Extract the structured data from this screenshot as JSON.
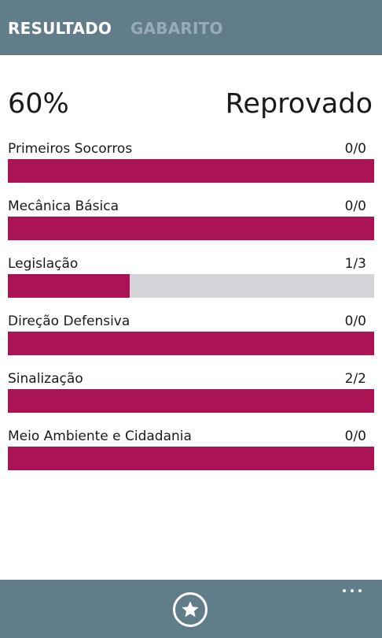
{
  "tabs": {
    "active": "RESULTADO",
    "inactive": "GABARITO"
  },
  "summary": {
    "score": "60%",
    "verdict": "Reprovado"
  },
  "colors": {
    "header": "#617d8a",
    "bar_fill": "#aa1354",
    "bar_track": "#d3d5d8"
  },
  "categories": [
    {
      "name": "Primeiros Socorros",
      "count": "0/0",
      "progress": 1.0
    },
    {
      "name": "Mecânica Básica",
      "count": "0/0",
      "progress": 1.0
    },
    {
      "name": "Legislação",
      "count": "1/3",
      "progress": 0.3333
    },
    {
      "name": "Direção Defensiva",
      "count": "0/0",
      "progress": 1.0
    },
    {
      "name": "Sinalização",
      "count": "2/2",
      "progress": 1.0
    },
    {
      "name": "Meio Ambiente e Cidadania",
      "count": "0/0",
      "progress": 1.0
    }
  ],
  "app_bar": {
    "primary_icon": "star-icon",
    "menu_icon": "more-icon"
  }
}
